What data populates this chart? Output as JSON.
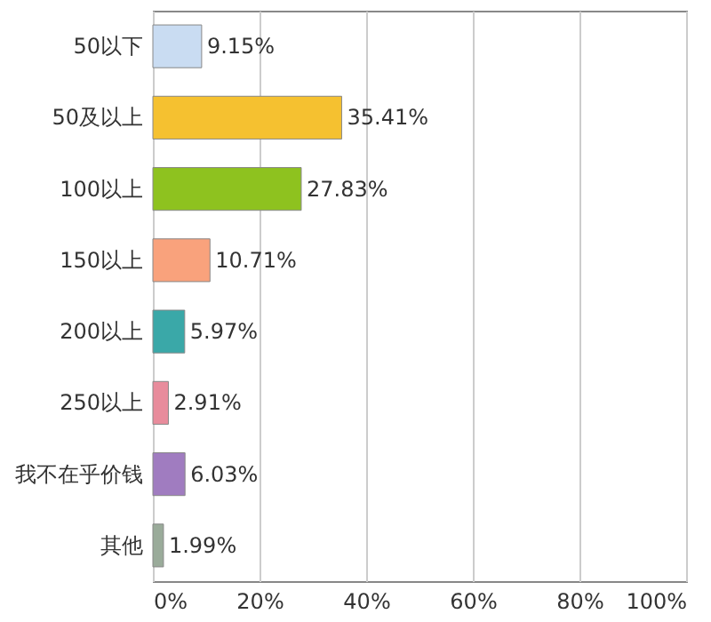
{
  "chart_data": {
    "type": "bar",
    "orientation": "horizontal",
    "categories": [
      "50以下",
      "50及以上",
      "100以上",
      "150以上",
      "200以上",
      "250以上",
      "我不在乎价钱",
      "其他"
    ],
    "values": [
      9.15,
      35.41,
      27.83,
      10.71,
      5.97,
      2.91,
      6.03,
      1.99
    ],
    "value_labels": [
      "9.15%",
      "35.41%",
      "27.83%",
      "10.71%",
      "5.97%",
      "2.91%",
      "6.03%",
      "1.99%"
    ],
    "colors": [
      "#c9dcf2",
      "#f5c130",
      "#8ec21f",
      "#f9a27c",
      "#3aa8a8",
      "#e88c9c",
      "#a07cc0",
      "#9aab9a"
    ],
    "xlim": [
      0,
      100
    ],
    "xticks": [
      {
        "value": 0,
        "label": "0%"
      },
      {
        "value": 20,
        "label": "20%"
      },
      {
        "value": 40,
        "label": "40%"
      },
      {
        "value": 60,
        "label": "60%"
      },
      {
        "value": 80,
        "label": "80%"
      },
      {
        "value": 100,
        "label": "100%"
      }
    ],
    "grid": "x"
  }
}
